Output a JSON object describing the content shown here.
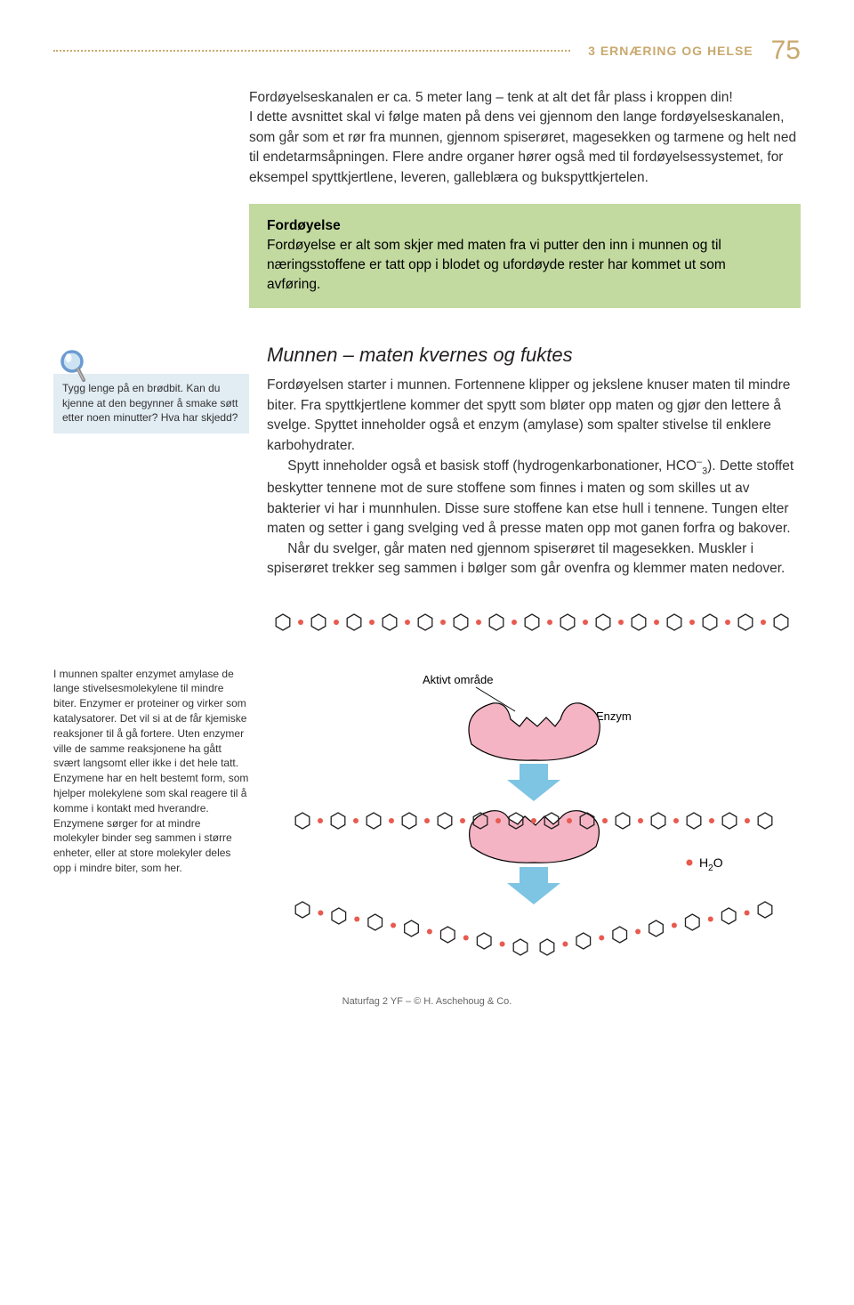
{
  "header": {
    "chapter_title": "3 ERNÆRING OG HELSE",
    "page_number": "75"
  },
  "intro_para": "Fordøyelseskanalen er ca. 5 meter lang – tenk at alt det får plass i kroppen din!",
  "intro_para2": "I dette avsnittet skal vi følge maten på dens vei gjennom den lange fordøyelseskanalen, som går som et rør fra munnen, gjennom spiserøret, magesekken og tarmene og helt ned til endetarmsåpningen. Flere andre organer hører også med til fordøyelsessystemet, for eksempel spyttkjertlene, leveren, galleblæra og bukspyttkjertelen.",
  "green_box": {
    "title": "Fordøyelse",
    "text": "Fordøyelse er alt som skjer med maten fra vi putter den inn i munnen og til næringsstoffene er tatt opp i blodet og ufordøyde rester har kommet ut som avføring."
  },
  "magnifier_note": "Tygg lenge på en brødbit. Kan du kjenne at den begynner å smake søtt etter noen minutter? Hva har skjedd?",
  "section_heading": "Munnen – maten kvernes og fuktes",
  "section_p1": "Fordøyelsen starter i munnen. Fortennene klipper og jekslene knuser maten til mindre biter. Fra spyttkjertlene kommer det spytt som bløter opp maten og gjør den lettere å svelge. Spyttet inneholder også et enzym (amylase) som spalter stivelse til enklere karbohydrater.",
  "section_p2a": "Spytt inneholder også et basisk stoff (hydrogenkarbonationer, HCO",
  "section_p2_sub": "3",
  "section_p2_sup": "–",
  "section_p2b": "). Dette stoffet beskytter tennene mot de sure stoffene som finnes i maten og som skilles ut av bakterier vi har i munnhulen. Disse sure stoffene kan etse hull i tennene. Tungen elter maten og setter i gang svelging ved å presse maten opp mot ganen forfra og bakover.",
  "section_p3": "Når du svelger, går maten ned gjennom spiserøret til magesekken. Muskler i spiserøret trekker seg sammen i bølger som går ovenfra og klemmer maten nedover.",
  "enzyme_caption": "I munnen spalter enzymet amylase de lange stivelsesmolekylene til mindre biter. Enzymer er proteiner og virker som katalysatorer. Det vil si at de får kjemiske reaksjoner til å gå fortere. Uten enzymer ville de samme reaksjonene ha gått svært langsomt eller ikke i det hele tatt. Enzymene har en helt bestemt form, som hjelper molekylene som skal reagere til å komme i kontakt med hverandre. Enzymene sørger for at mindre molekyler binder seg sammen i større enheter, eller at store molekyler deles opp i mindre biter, som her.",
  "figure": {
    "active_label": "Aktivt område",
    "enzyme_label": "Enzym",
    "h2o_label": "H",
    "h2o_sub": "2",
    "h2o_label2": "O",
    "colors": {
      "hex_stroke": "#231f20",
      "dot_fill": "#e85a4f",
      "enzyme_fill": "#f4b4c4",
      "enzyme_stroke": "#000",
      "arrow_fill": "#7ec4e3",
      "water_dot": "#e85a4f"
    }
  },
  "footer": "Naturfag 2 YF – © H. Aschehoug & Co.",
  "magnifier_colors": {
    "rim": "#6b9bd1",
    "glass": "#cce4f2",
    "handle": "#888"
  }
}
